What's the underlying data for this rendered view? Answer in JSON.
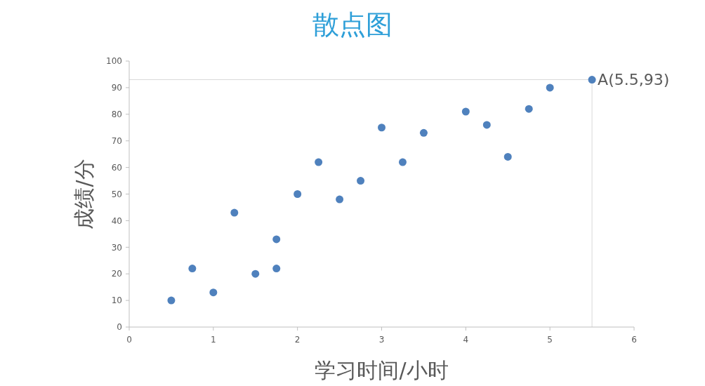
{
  "chart_data": {
    "type": "scatter",
    "title": "散点图",
    "xlabel": "学习时间/小时",
    "ylabel": "成绩/分",
    "xlim": [
      0,
      6
    ],
    "xticks": [
      0,
      1,
      2,
      3,
      4,
      5,
      6
    ],
    "ylim": [
      0,
      100
    ],
    "yticks": [
      0,
      10,
      20,
      30,
      40,
      50,
      60,
      70,
      80,
      90,
      100
    ],
    "marker": "circle",
    "grid": false,
    "series": [
      {
        "color": "#4f81bd",
        "x": [
          0.5,
          0.75,
          1,
          1.25,
          1.5,
          1.75,
          1.75,
          2,
          2.25,
          2.5,
          2.75,
          3,
          3.25,
          3.5,
          4,
          4.25,
          4.5,
          4.75,
          5,
          5.5
        ],
        "values": [
          10,
          22,
          13,
          43,
          20,
          33,
          22,
          50,
          62,
          48,
          55,
          75,
          62,
          73,
          81,
          76,
          64,
          82,
          90,
          93
        ]
      }
    ],
    "ref_lines": [
      {
        "axis": "y",
        "value": 93,
        "color": "#d9d9d9"
      },
      {
        "axis": "x",
        "value": 5.5,
        "color": "#d9d9d9"
      }
    ],
    "annotations": [
      {
        "text": "A(5.5,93)",
        "x": 5.5,
        "y": 93
      }
    ]
  }
}
